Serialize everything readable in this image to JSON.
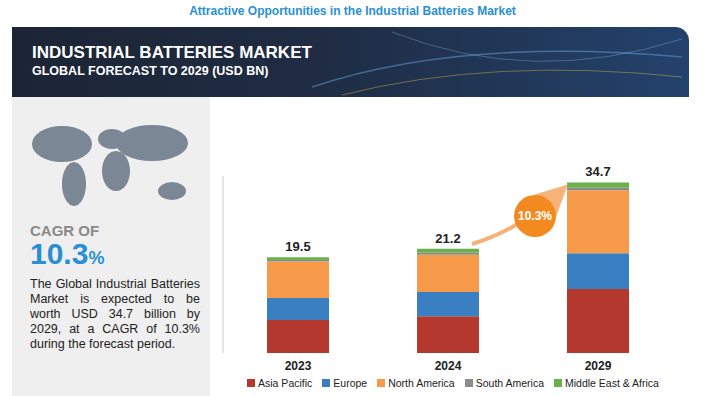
{
  "header": {
    "title": "Attractive Opportunities in the Industrial Batteries Market",
    "banner_title": "INDUSTRIAL BATTERIES MARKET",
    "banner_subtitle": "GLOBAL FORECAST TO 2029 (USD BN)"
  },
  "side_panel": {
    "cagr_prefix": "CAGR OF",
    "cagr": "10.3%",
    "description": "The Global Industrial Batteries Market is expected to be worth USD 34.7 billion by 2029, at a CAGR of 10.3% during the forecast period."
  },
  "chart_data": {
    "type": "bar",
    "stacked": true,
    "categories": [
      "2023",
      "2024",
      "2029"
    ],
    "series": [
      {
        "name": "Asia Pacific",
        "color": "#b5382f",
        "values": [
          6.7,
          7.5,
          13.0
        ]
      },
      {
        "name": "Europe",
        "color": "#3a7fc1",
        "values": [
          4.5,
          4.9,
          7.3
        ]
      },
      {
        "name": "North America",
        "color": "#f79a4a",
        "values": [
          7.4,
          7.6,
          12.8
        ]
      },
      {
        "name": "South America",
        "color": "#8c8c8c",
        "values": [
          0.3,
          0.4,
          0.5
        ]
      },
      {
        "name": "Middle East & Africa",
        "color": "#6ab04c",
        "values": [
          0.6,
          0.8,
          1.1
        ]
      }
    ],
    "totals": [
      19.5,
      21.2,
      34.7
    ],
    "annotation": "10.3%",
    "ylim": [
      0,
      36
    ],
    "tick_labels": "x",
    "grid": false,
    "legend": "bottom"
  }
}
